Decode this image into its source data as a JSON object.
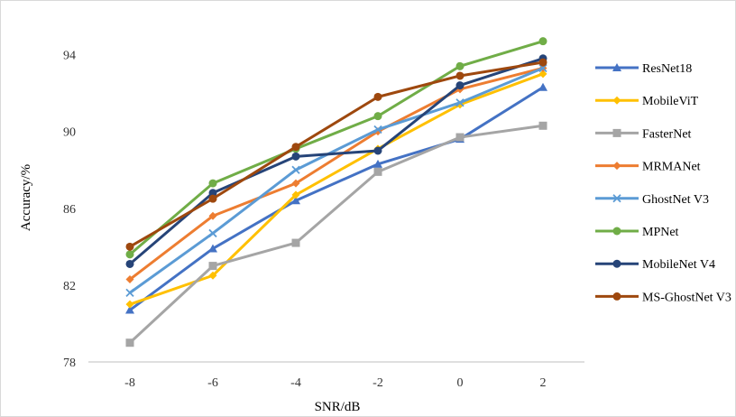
{
  "chart_data": {
    "type": "line",
    "title": "",
    "xlabel": "SNR/dB",
    "ylabel": "Accuracy/%",
    "x": [
      -8,
      -6,
      -4,
      -2,
      0,
      2
    ],
    "x_tick_labels": [
      "-8",
      "-6",
      "-4",
      "-2",
      "0",
      "2"
    ],
    "yticks": [
      78,
      82,
      86,
      90,
      94
    ],
    "ylim": [
      78,
      96
    ],
    "grid": false,
    "legend_position": "right",
    "series": [
      {
        "name": "ResNet18",
        "color": "#4472C4",
        "marker": "triangle",
        "values": [
          80.7,
          83.9,
          86.4,
          88.3,
          89.6,
          92.3
        ]
      },
      {
        "name": "MobileViT",
        "color": "#FFC000",
        "marker": "diamond",
        "values": [
          81.0,
          82.5,
          86.7,
          89.1,
          91.4,
          93.0
        ]
      },
      {
        "name": "FasterNet",
        "color": "#A5A5A5",
        "marker": "square",
        "values": [
          79.0,
          83.0,
          84.2,
          87.9,
          89.7,
          90.3
        ]
      },
      {
        "name": "MRMANet",
        "color": "#ED7D31",
        "marker": "diamond",
        "values": [
          82.3,
          85.6,
          87.3,
          90.0,
          92.2,
          93.3
        ]
      },
      {
        "name": "GhostNet V3",
        "color": "#5B9BD5",
        "marker": "x",
        "values": [
          81.6,
          84.7,
          88.0,
          90.1,
          91.5,
          93.3
        ]
      },
      {
        "name": "MPNet",
        "color": "#70AD47",
        "marker": "circle",
        "values": [
          83.6,
          87.3,
          89.1,
          90.8,
          93.4,
          94.7
        ]
      },
      {
        "name": "MobileNet V4",
        "color": "#264478",
        "marker": "circle",
        "values": [
          83.1,
          86.8,
          88.7,
          89.0,
          92.4,
          93.8
        ]
      },
      {
        "name": "MS-GhostNet V3",
        "color": "#9E480E",
        "marker": "circle",
        "values": [
          84.0,
          86.5,
          89.2,
          91.8,
          92.9,
          93.6
        ]
      }
    ]
  }
}
